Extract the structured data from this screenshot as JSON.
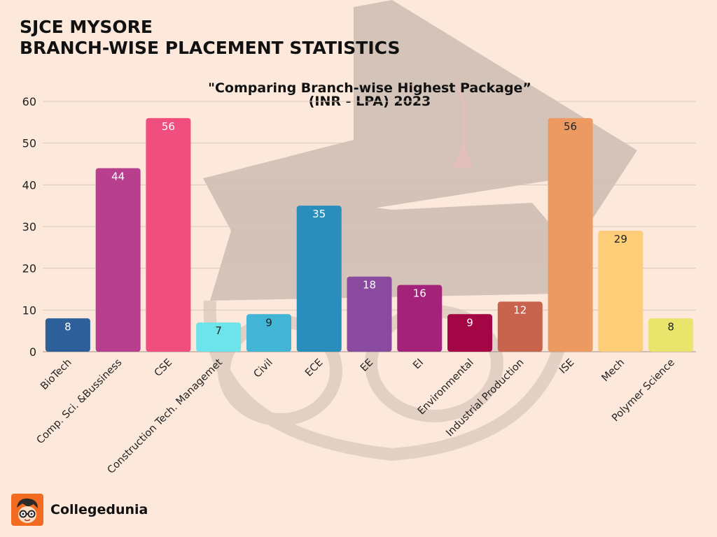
{
  "header": {
    "title_line1": "SJCE MYSORE",
    "title_line2": "BRANCH-WISE PLACEMENT STATISTICS"
  },
  "brand": {
    "name": "Collegedunia",
    "logo_icon": "collegedunia-logo-icon"
  },
  "chart_data": {
    "type": "bar",
    "title_line1": "\"Comparing Branch-wise Highest Package”",
    "title_line2": "(INR - LPA) 2023",
    "xlabel": "",
    "ylabel": "",
    "ylim": [
      0,
      60
    ],
    "yticks": [
      0,
      10,
      20,
      30,
      40,
      50,
      60
    ],
    "grid": true,
    "legend": "none",
    "categories": [
      "BioTech",
      "Comp. Sci. &Bussiness",
      "CSE",
      "Construction Tech. Managemet",
      "Civil",
      "ECE",
      "EE",
      "EI",
      "Environmental",
      "Industrial Production",
      "ISE",
      "Mech",
      "Polymer Science"
    ],
    "values": [
      8,
      44,
      56,
      7,
      9,
      35,
      18,
      16,
      9,
      12,
      56,
      29,
      8
    ],
    "colors": [
      "#2d5f9a",
      "#b83e8e",
      "#ef4e7f",
      "#6de3ea",
      "#42b4d6",
      "#2a8ebd",
      "#8a4a9f",
      "#a3237a",
      "#a40645",
      "#c8634e",
      "#ec9a62",
      "#fdcd78",
      "#e9e46b"
    ],
    "label_colors": [
      "#ffffff",
      "#ffffff",
      "#ffffff",
      "#222222",
      "#222222",
      "#ffffff",
      "#ffffff",
      "#ffffff",
      "#ffffff",
      "#ffffff",
      "#222222",
      "#222222",
      "#222222"
    ]
  }
}
